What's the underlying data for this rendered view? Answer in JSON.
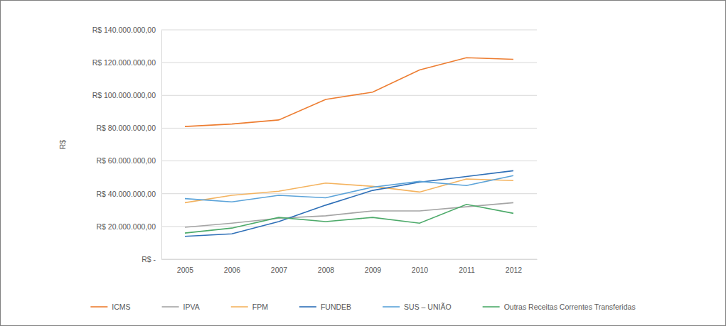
{
  "chart_data": {
    "type": "line",
    "y_label": "R$",
    "categories": [
      "2005",
      "2006",
      "2007",
      "2008",
      "2009",
      "2010",
      "2011",
      "2012"
    ],
    "series": [
      {
        "name": "ICMS",
        "color": "#ed7d31",
        "values": [
          81000000,
          82500000,
          85000000,
          97500000,
          102000000,
          115500000,
          123000000,
          122000000
        ]
      },
      {
        "name": "IPVA",
        "color": "#a5a5a5",
        "values": [
          19500000,
          22000000,
          25000000,
          26500000,
          29500000,
          29500000,
          32000000,
          34500000
        ]
      },
      {
        "name": "FPM",
        "color": "#f4b35f",
        "values": [
          34500000,
          39000000,
          41500000,
          46500000,
          44500000,
          41000000,
          49000000,
          48000000
        ]
      },
      {
        "name": "FUNDEB",
        "color": "#2e6fb7",
        "values": [
          14000000,
          15500000,
          23000000,
          33000000,
          42000000,
          47000000,
          50500000,
          54000000
        ]
      },
      {
        "name": "SUS – UNIÃO",
        "color": "#5ba3d9",
        "values": [
          37000000,
          35000000,
          39000000,
          37500000,
          44000000,
          47500000,
          45000000,
          51000000
        ]
      },
      {
        "name": "Outras Receitas Correntes Transferidas",
        "color": "#4daa6a",
        "values": [
          16000000,
          19000000,
          25500000,
          23000000,
          25500000,
          22000000,
          33500000,
          28000000
        ]
      }
    ],
    "ylim": [
      0,
      140000000
    ],
    "yticks": [
      {
        "value": 0,
        "label": "R$ -"
      },
      {
        "value": 20000000,
        "label": "R$ 20.000.000,00"
      },
      {
        "value": 40000000,
        "label": "R$ 40.000.000,00"
      },
      {
        "value": 60000000,
        "label": "R$ 60.000.000,00"
      },
      {
        "value": 80000000,
        "label": "R$ 80.000.000,00"
      },
      {
        "value": 100000000,
        "label": "R$ 100.000.000,00"
      },
      {
        "value": 120000000,
        "label": "R$ 120.000.000,00"
      },
      {
        "value": 140000000,
        "label": "R$ 140.000.000,00"
      }
    ],
    "grid": true,
    "legend": "bottom"
  }
}
